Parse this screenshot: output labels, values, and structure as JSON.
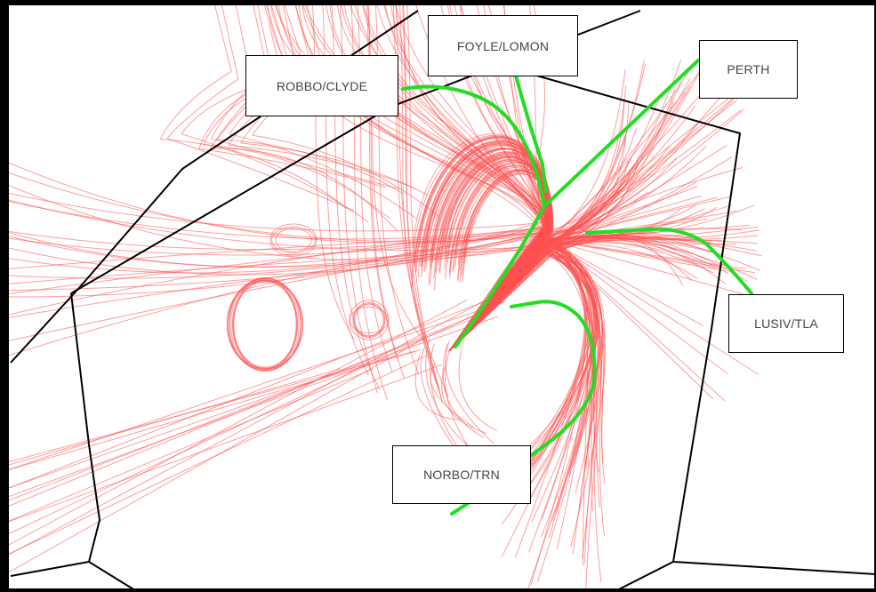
{
  "colors": {
    "tracks": "#ff5050",
    "routes": "#22dd22",
    "sector_boundary": "#000000",
    "background": "#ffffff"
  },
  "labels": {
    "robbo_clyde": "ROBBO/CLYDE",
    "foyle_lomon": "FOYLE/LOMON",
    "perth": "PERTH",
    "lusiv_tla": "LUSIV/TLA",
    "norbo_trn": "NORBO/TRN"
  }
}
